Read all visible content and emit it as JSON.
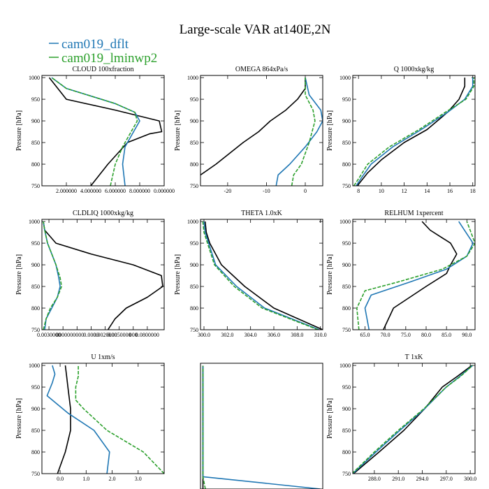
{
  "figure": {
    "title": "Large-scale VAR at140E,2N",
    "legend": [
      {
        "label": "cam019_dflt",
        "color": "#1f77b4",
        "dash": ""
      },
      {
        "label": "cam019_lminwp2",
        "color": "#2ca02c",
        "dash": "5,2"
      }
    ],
    "ref_color": "#000000"
  },
  "chart_data": [
    {
      "type": "line",
      "title": "CLOUD  100xfraction",
      "ylabel": "Pressure [hPa]",
      "ylim": [
        1005,
        750
      ],
      "yticks": [
        750,
        800,
        850,
        900,
        950,
        1000
      ],
      "xlim": [
        0.0,
        0.5
      ],
      "xticks": [
        0.1,
        0.2,
        0.3,
        0.4,
        0.5
      ],
      "xticklabels": [
        "2.000000",
        "4.000000",
        "6.000000",
        "8.000000",
        "0.000000"
      ],
      "series": [
        {
          "name": "ref",
          "x": [
            0.2,
            0.27,
            0.35,
            0.44,
            0.49,
            0.48,
            0.3,
            0.1,
            0.03
          ],
          "y": [
            750,
            800,
            850,
            870,
            875,
            900,
            925,
            950,
            1000
          ]
        },
        {
          "name": "cam019_dflt",
          "x": [
            0.34,
            0.33,
            0.34,
            0.37,
            0.4,
            0.38,
            0.3,
            0.1,
            0.04
          ],
          "y": [
            750,
            800,
            840,
            870,
            900,
            920,
            940,
            975,
            1000
          ]
        },
        {
          "name": "cam019_lminwp2",
          "x": [
            0.28,
            0.3,
            0.33,
            0.36,
            0.39,
            0.38,
            0.3,
            0.1,
            0.04
          ],
          "y": [
            750,
            800,
            840,
            870,
            900,
            920,
            940,
            975,
            1000
          ]
        }
      ]
    },
    {
      "type": "line",
      "title": "OMEGA  864xPa/s",
      "ylabel": "Pressure [hPa]",
      "ylim": [
        1005,
        750
      ],
      "yticks": [
        750,
        800,
        850,
        900,
        950,
        1000
      ],
      "xlim": [
        -27,
        4.5
      ],
      "xticks": [
        -20,
        -10,
        0
      ],
      "xticklabels": [
        "-20",
        "-10",
        "0"
      ],
      "series": [
        {
          "name": "ref",
          "x": [
            -27,
            -23,
            -16,
            -12,
            -9,
            -5,
            -2,
            0,
            0
          ],
          "y": [
            775,
            800,
            850,
            875,
            900,
            925,
            950,
            975,
            1000
          ]
        },
        {
          "name": "cam019_dflt",
          "x": [
            -7.5,
            -7,
            -4,
            0,
            3,
            4.5,
            4,
            1,
            0
          ],
          "y": [
            750,
            775,
            800,
            840,
            875,
            900,
            925,
            960,
            1000
          ]
        },
        {
          "name": "cam019_lminwp2",
          "x": [
            -3.5,
            -3,
            -1,
            1,
            2.5,
            2,
            0,
            0
          ],
          "y": [
            750,
            775,
            800,
            850,
            900,
            925,
            960,
            1000
          ]
        }
      ]
    },
    {
      "type": "line",
      "title": "Q  1000xkg/kg",
      "ylabel": "Pressure [hPa]",
      "ylim": [
        1005,
        750
      ],
      "yticks": [
        750,
        800,
        850,
        900,
        950,
        1000
      ],
      "xlim": [
        7.5,
        18.2
      ],
      "xticks": [
        8,
        10,
        12,
        14,
        16,
        18
      ],
      "xticklabels": [
        "8",
        "10",
        "12",
        "14",
        "16",
        "18"
      ],
      "series": [
        {
          "name": "ref",
          "x": [
            7.9,
            8.8,
            10.0,
            12.0,
            14.0,
            15.8,
            16.8,
            17.3,
            17.3
          ],
          "y": [
            750,
            780,
            810,
            850,
            880,
            920,
            950,
            980,
            1000
          ]
        },
        {
          "name": "cam019_dflt",
          "x": [
            7.8,
            8.3,
            9.1,
            11.0,
            13.5,
            15.8,
            17.3,
            18.0,
            18.0
          ],
          "y": [
            750,
            770,
            800,
            840,
            880,
            920,
            950,
            980,
            1000
          ]
        },
        {
          "name": "cam019_lminwp2",
          "x": [
            7.6,
            8.1,
            8.8,
            10.7,
            13.3,
            15.6,
            17.4,
            18.1,
            18.1
          ],
          "y": [
            750,
            770,
            800,
            840,
            880,
            920,
            950,
            980,
            1000
          ]
        }
      ]
    },
    {
      "type": "line",
      "title": "CLDLIQ  1000xkg/kg",
      "ylabel": "Pressure [hPa]",
      "ylim": [
        1005,
        750
      ],
      "yticks": [
        750,
        800,
        850,
        900,
        950,
        1000
      ],
      "xlim": [
        0.0,
        0.087
      ],
      "xticks": [
        0.005,
        0.015,
        0.025,
        0.035,
        0.045,
        0.055,
        0.065,
        0.075
      ],
      "xticklabels": [
        "0.0030000",
        "00000",
        "00000",
        "0.0000",
        "0.0020000",
        "0.0050000",
        "000",
        "0.0800000"
      ],
      "series": [
        {
          "name": "ref",
          "x": [
            0.047,
            0.052,
            0.06,
            0.075,
            0.086,
            0.085,
            0.065,
            0.035,
            0.01,
            0.002,
            0.001
          ],
          "y": [
            750,
            775,
            800,
            825,
            850,
            875,
            900,
            925,
            950,
            980,
            1000
          ]
        },
        {
          "name": "cam019_dflt",
          "x": [
            0.002,
            0.003,
            0.007,
            0.011,
            0.013,
            0.012,
            0.01,
            0.007,
            0.004,
            0.002,
            0.001
          ],
          "y": [
            750,
            775,
            800,
            825,
            850,
            870,
            900,
            925,
            950,
            980,
            1000
          ]
        },
        {
          "name": "cam019_lminwp2",
          "x": [
            0.001,
            0.003,
            0.006,
            0.011,
            0.014,
            0.013,
            0.01,
            0.007,
            0.004,
            0.002,
            0.001
          ],
          "y": [
            750,
            775,
            800,
            825,
            850,
            870,
            900,
            925,
            950,
            980,
            1000
          ]
        }
      ]
    },
    {
      "type": "line",
      "title": "THETA  1.0xK",
      "ylabel": "Pressure [hPa]",
      "ylim": [
        1005,
        750
      ],
      "yticks": [
        750,
        800,
        850,
        900,
        950,
        1000
      ],
      "xlim": [
        299.7,
        310.2
      ],
      "xticks": [
        300.0,
        302.0,
        304.0,
        306.0,
        308.0,
        310.0
      ],
      "xticklabels": [
        "300.0",
        "302.0",
        "304.0",
        "306.0",
        "308.0",
        "310.0"
      ],
      "series": [
        {
          "name": "ref",
          "x": [
            310.2,
            306.0,
            303.5,
            301.5,
            300.5,
            300.2,
            300.1
          ],
          "y": [
            750,
            800,
            850,
            900,
            950,
            975,
            1000
          ]
        },
        {
          "name": "cam019_dflt",
          "x": [
            309.9,
            305.2,
            302.8,
            301.0,
            300.4,
            300.1,
            300.0
          ],
          "y": [
            750,
            800,
            850,
            900,
            950,
            975,
            1000
          ]
        },
        {
          "name": "cam019_lminwp2",
          "x": [
            309.8,
            305.0,
            302.6,
            300.9,
            300.3,
            300.0,
            299.9
          ],
          "y": [
            750,
            800,
            850,
            900,
            950,
            975,
            1000
          ]
        }
      ]
    },
    {
      "type": "line",
      "title": "RELHUM  1xpercent",
      "ylabel": "Pressure [hPa]",
      "ylim": [
        1005,
        750
      ],
      "yticks": [
        750,
        800,
        850,
        900,
        950,
        1000
      ],
      "xlim": [
        62.0,
        92.0
      ],
      "xticks": [
        65.0,
        70.0,
        75.0,
        80.0,
        85.0,
        90.0
      ],
      "xticklabels": [
        "65.0",
        "70.0",
        "75.0",
        "80.0",
        "85.0",
        "90.0"
      ],
      "series": [
        {
          "name": "ref",
          "x": [
            69.5,
            72.0,
            80.0,
            85.0,
            86.0,
            87.5,
            86.0,
            81.0,
            79.0
          ],
          "y": [
            750,
            800,
            850,
            880,
            900,
            925,
            950,
            980,
            1000
          ]
        },
        {
          "name": "cam019_dflt",
          "x": [
            66.0,
            65.0,
            66.5,
            76.0,
            85.0,
            90.0,
            91.5,
            88.0
          ],
          "y": [
            750,
            800,
            830,
            860,
            890,
            920,
            950,
            1000
          ]
        },
        {
          "name": "cam019_lminwp2",
          "x": [
            63.5,
            63.0,
            65.0,
            73.0,
            84.0,
            90.0,
            92.0,
            90.0
          ],
          "y": [
            750,
            800,
            840,
            860,
            890,
            920,
            950,
            1000
          ]
        }
      ]
    },
    {
      "type": "line",
      "title": "U  1xm/s",
      "ylabel": "Pressure [hPa]",
      "ylim": [
        1005,
        750
      ],
      "yticks": [
        750,
        800,
        850,
        900,
        950,
        1000
      ],
      "xlim": [
        -0.7,
        4.0
      ],
      "xticks": [
        0.0,
        1.0,
        2.0,
        3.0
      ],
      "xticklabels": [
        "0.0",
        "1.0",
        "2.0",
        "3.0"
      ],
      "series": [
        {
          "name": "ref",
          "x": [
            -0.1,
            0.2,
            0.4,
            0.4,
            0.3,
            0.25,
            0.2
          ],
          "y": [
            750,
            800,
            850,
            900,
            950,
            975,
            1000
          ]
        },
        {
          "name": "cam019_dflt",
          "x": [
            1.8,
            1.9,
            1.3,
            0.3,
            -0.5,
            -0.3,
            -0.2,
            -0.3
          ],
          "y": [
            750,
            800,
            850,
            890,
            930,
            960,
            980,
            1000
          ]
        },
        {
          "name": "cam019_lminwp2",
          "x": [
            4.0,
            3.2,
            1.8,
            0.9,
            0.6,
            0.6,
            0.7,
            0.7
          ],
          "y": [
            750,
            800,
            850,
            900,
            920,
            950,
            975,
            1000
          ]
        }
      ]
    },
    {
      "type": "line",
      "title": "",
      "ylabel": "",
      "ylim": [
        1005,
        750
      ],
      "yticks": [],
      "xlim": [
        0.0,
        1.0
      ],
      "xticks": [],
      "xticklabels": [],
      "series": [
        {
          "name": "ref",
          "x": [
            0.02,
            0.02
          ],
          "y": [
            750,
            1000
          ]
        },
        {
          "name": "cam019_dflt",
          "x": [
            0.98,
            0.02,
            0.02
          ],
          "y": [
            750,
            775,
            1000
          ]
        },
        {
          "name": "cam019_lminwp2",
          "x": [
            0.04,
            0.02,
            0.02
          ],
          "y": [
            750,
            775,
            1000
          ]
        }
      ]
    },
    {
      "type": "line",
      "title": "T  1xK",
      "ylabel": "Pressure [hPa]",
      "ylim": [
        1005,
        750
      ],
      "yticks": [
        750,
        800,
        850,
        900,
        950,
        1000
      ],
      "xlim": [
        285.3,
        300.6
      ],
      "xticks": [
        288.0,
        291.0,
        294.0,
        297.0,
        300.0
      ],
      "xticklabels": [
        "288.0",
        "291.0",
        "294.0",
        "297.0",
        "300.0"
      ],
      "series": [
        {
          "name": "ref",
          "x": [
            285.4,
            288.6,
            291.7,
            294.3,
            296.5,
            298.4,
            300.2
          ],
          "y": [
            750,
            800,
            850,
            900,
            950,
            975,
            1000
          ]
        },
        {
          "name": "cam019_dflt",
          "x": [
            285.3,
            288.2,
            291.2,
            294.3,
            297.0,
            298.7,
            300.3
          ],
          "y": [
            750,
            800,
            850,
            900,
            950,
            975,
            1000
          ]
        },
        {
          "name": "cam019_lminwp2",
          "x": [
            285.2,
            288.0,
            291.0,
            294.2,
            297.0,
            298.8,
            300.3
          ],
          "y": [
            750,
            800,
            850,
            900,
            950,
            975,
            1000
          ]
        }
      ]
    }
  ]
}
